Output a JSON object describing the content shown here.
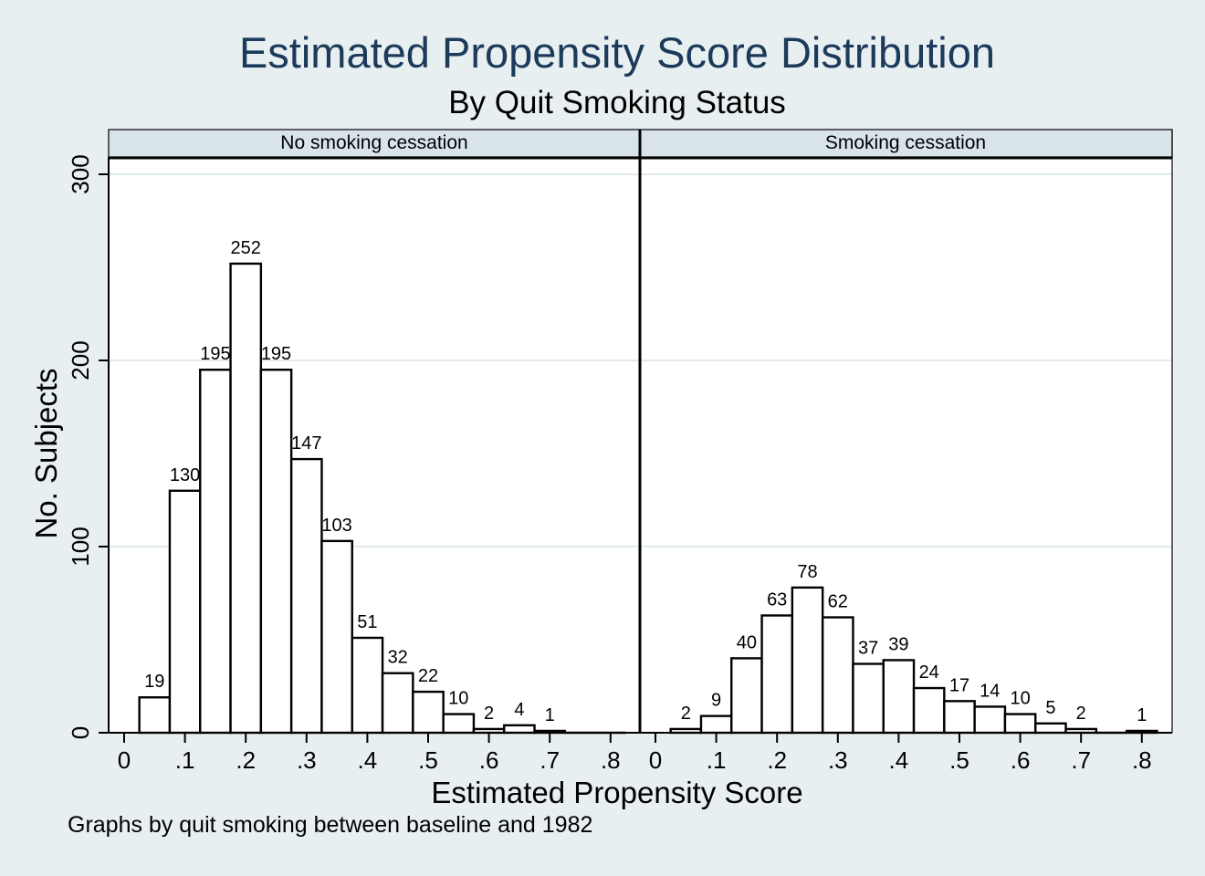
{
  "title": "Estimated Propensity Score Distribution",
  "subtitle": "By Quit Smoking Status",
  "note": "Graphs by quit smoking between baseline and 1982",
  "chart_data": {
    "type": "bar",
    "title": "Estimated Propensity Score Distribution",
    "subtitle": "By Quit Smoking Status",
    "xlabel": "Estimated Propensity Score",
    "ylabel": "No. Subjects",
    "ylim": [
      0,
      300
    ],
    "yticks": [
      "0",
      "100",
      "200",
      "300"
    ],
    "xlim": [
      0,
      0.85
    ],
    "xticks": [
      "0",
      ".1",
      ".2",
      ".3",
      ".4",
      ".5",
      ".6",
      ".7",
      ".8"
    ],
    "bin_width": 0.05,
    "grid": true,
    "panels": [
      {
        "name": "No smoking cessation",
        "bin_starts": [
          0.025,
          0.075,
          0.125,
          0.175,
          0.225,
          0.275,
          0.325,
          0.375,
          0.425,
          0.475,
          0.525,
          0.575,
          0.625,
          0.675,
          0.725,
          0.775
        ],
        "values": [
          19,
          130,
          195,
          252,
          195,
          147,
          103,
          51,
          32,
          22,
          10,
          2,
          4,
          1,
          0,
          0
        ],
        "labels": [
          "19",
          "130",
          "195",
          "252",
          "195",
          "147",
          "103",
          "51",
          "32",
          "22",
          "10",
          "2",
          "4",
          "1",
          "",
          ""
        ]
      },
      {
        "name": "Smoking cessation",
        "bin_starts": [
          0.025,
          0.075,
          0.125,
          0.175,
          0.225,
          0.275,
          0.325,
          0.375,
          0.425,
          0.475,
          0.525,
          0.575,
          0.625,
          0.675,
          0.725,
          0.775
        ],
        "values": [
          2,
          9,
          40,
          63,
          78,
          62,
          37,
          39,
          24,
          17,
          14,
          10,
          5,
          2,
          0,
          1
        ],
        "labels": [
          "2",
          "9",
          "40",
          "63",
          "78",
          "62",
          "37",
          "39",
          "24",
          "17",
          "14",
          "10",
          "5",
          "2",
          "",
          "1"
        ]
      }
    ]
  }
}
